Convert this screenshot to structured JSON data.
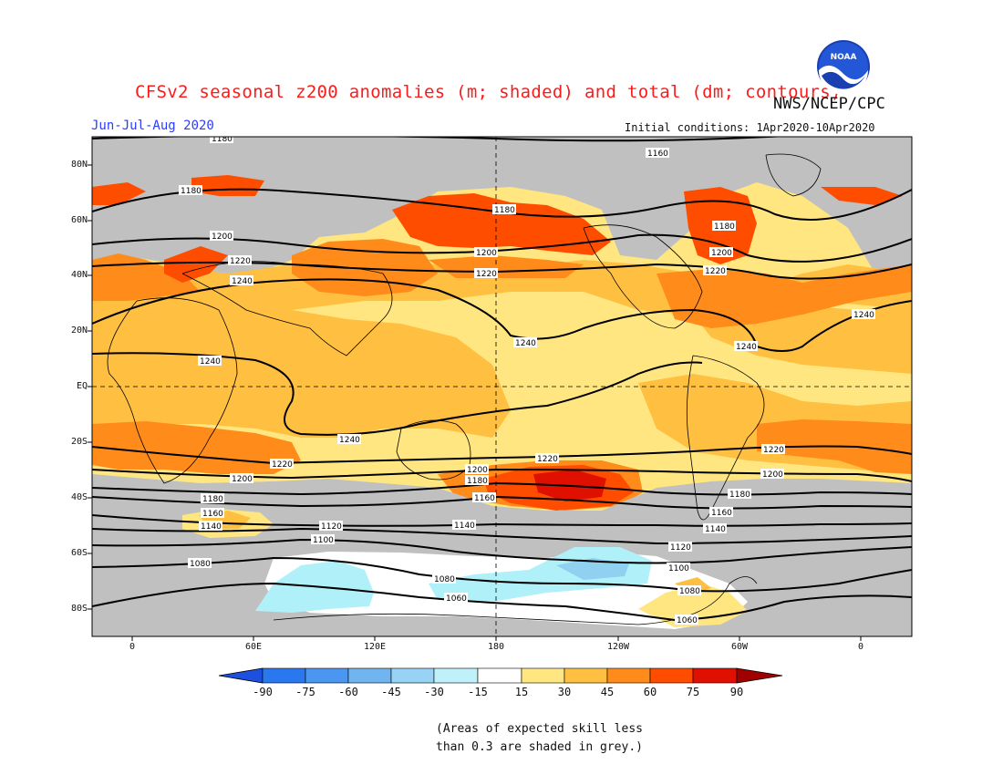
{
  "header": {
    "title": "CFSv2 seasonal z200 anomalies (m; shaded) and total (dm; contours)",
    "agency": "NWS/NCEP/CPC",
    "season": "Jun-Jul-Aug 2020",
    "initial_conditions": "Initial conditions: 1Apr2020-10Apr2020",
    "logo_text": "NOAA"
  },
  "map": {
    "lat_labels": [
      "80N",
      "60N",
      "40N",
      "20N",
      "EQ",
      "20S",
      "40S",
      "60S",
      "80S"
    ],
    "lon_labels": [
      "0",
      "60E",
      "120E",
      "180",
      "120W",
      "60W",
      "0"
    ],
    "contour_labels": [
      "1160",
      "1180",
      "1200",
      "1220",
      "1240",
      "1120",
      "1140",
      "1100",
      "1080",
      "1060"
    ],
    "colors": {
      "grey_low_skill": "#c0c0c0",
      "pos_15_30": "#ffe680",
      "pos_30_45": "#ffbf40",
      "pos_45_60": "#ff8c1a",
      "pos_60_75": "#ff4d00",
      "pos_75_90": "#e01000",
      "neg_15_30": "#b0f0f8",
      "neg_30_45": "#90d0f0"
    }
  },
  "colorbar": {
    "ticks": [
      "-90",
      "-75",
      "-60",
      "-45",
      "-30",
      "-15",
      "15",
      "30",
      "45",
      "60",
      "75",
      "90"
    ],
    "colors": [
      "#1e50e0",
      "#2a78f0",
      "#4a96f0",
      "#70b4f0",
      "#98d2f4",
      "#c0f0f8",
      "#ffffff",
      "#ffe680",
      "#ffbf40",
      "#ff8c1a",
      "#ff4d00",
      "#e01000",
      "#a00000"
    ]
  },
  "note": {
    "line1": "(Areas of expected skill less",
    "line2": "than 0.3 are shaded in grey.)"
  }
}
